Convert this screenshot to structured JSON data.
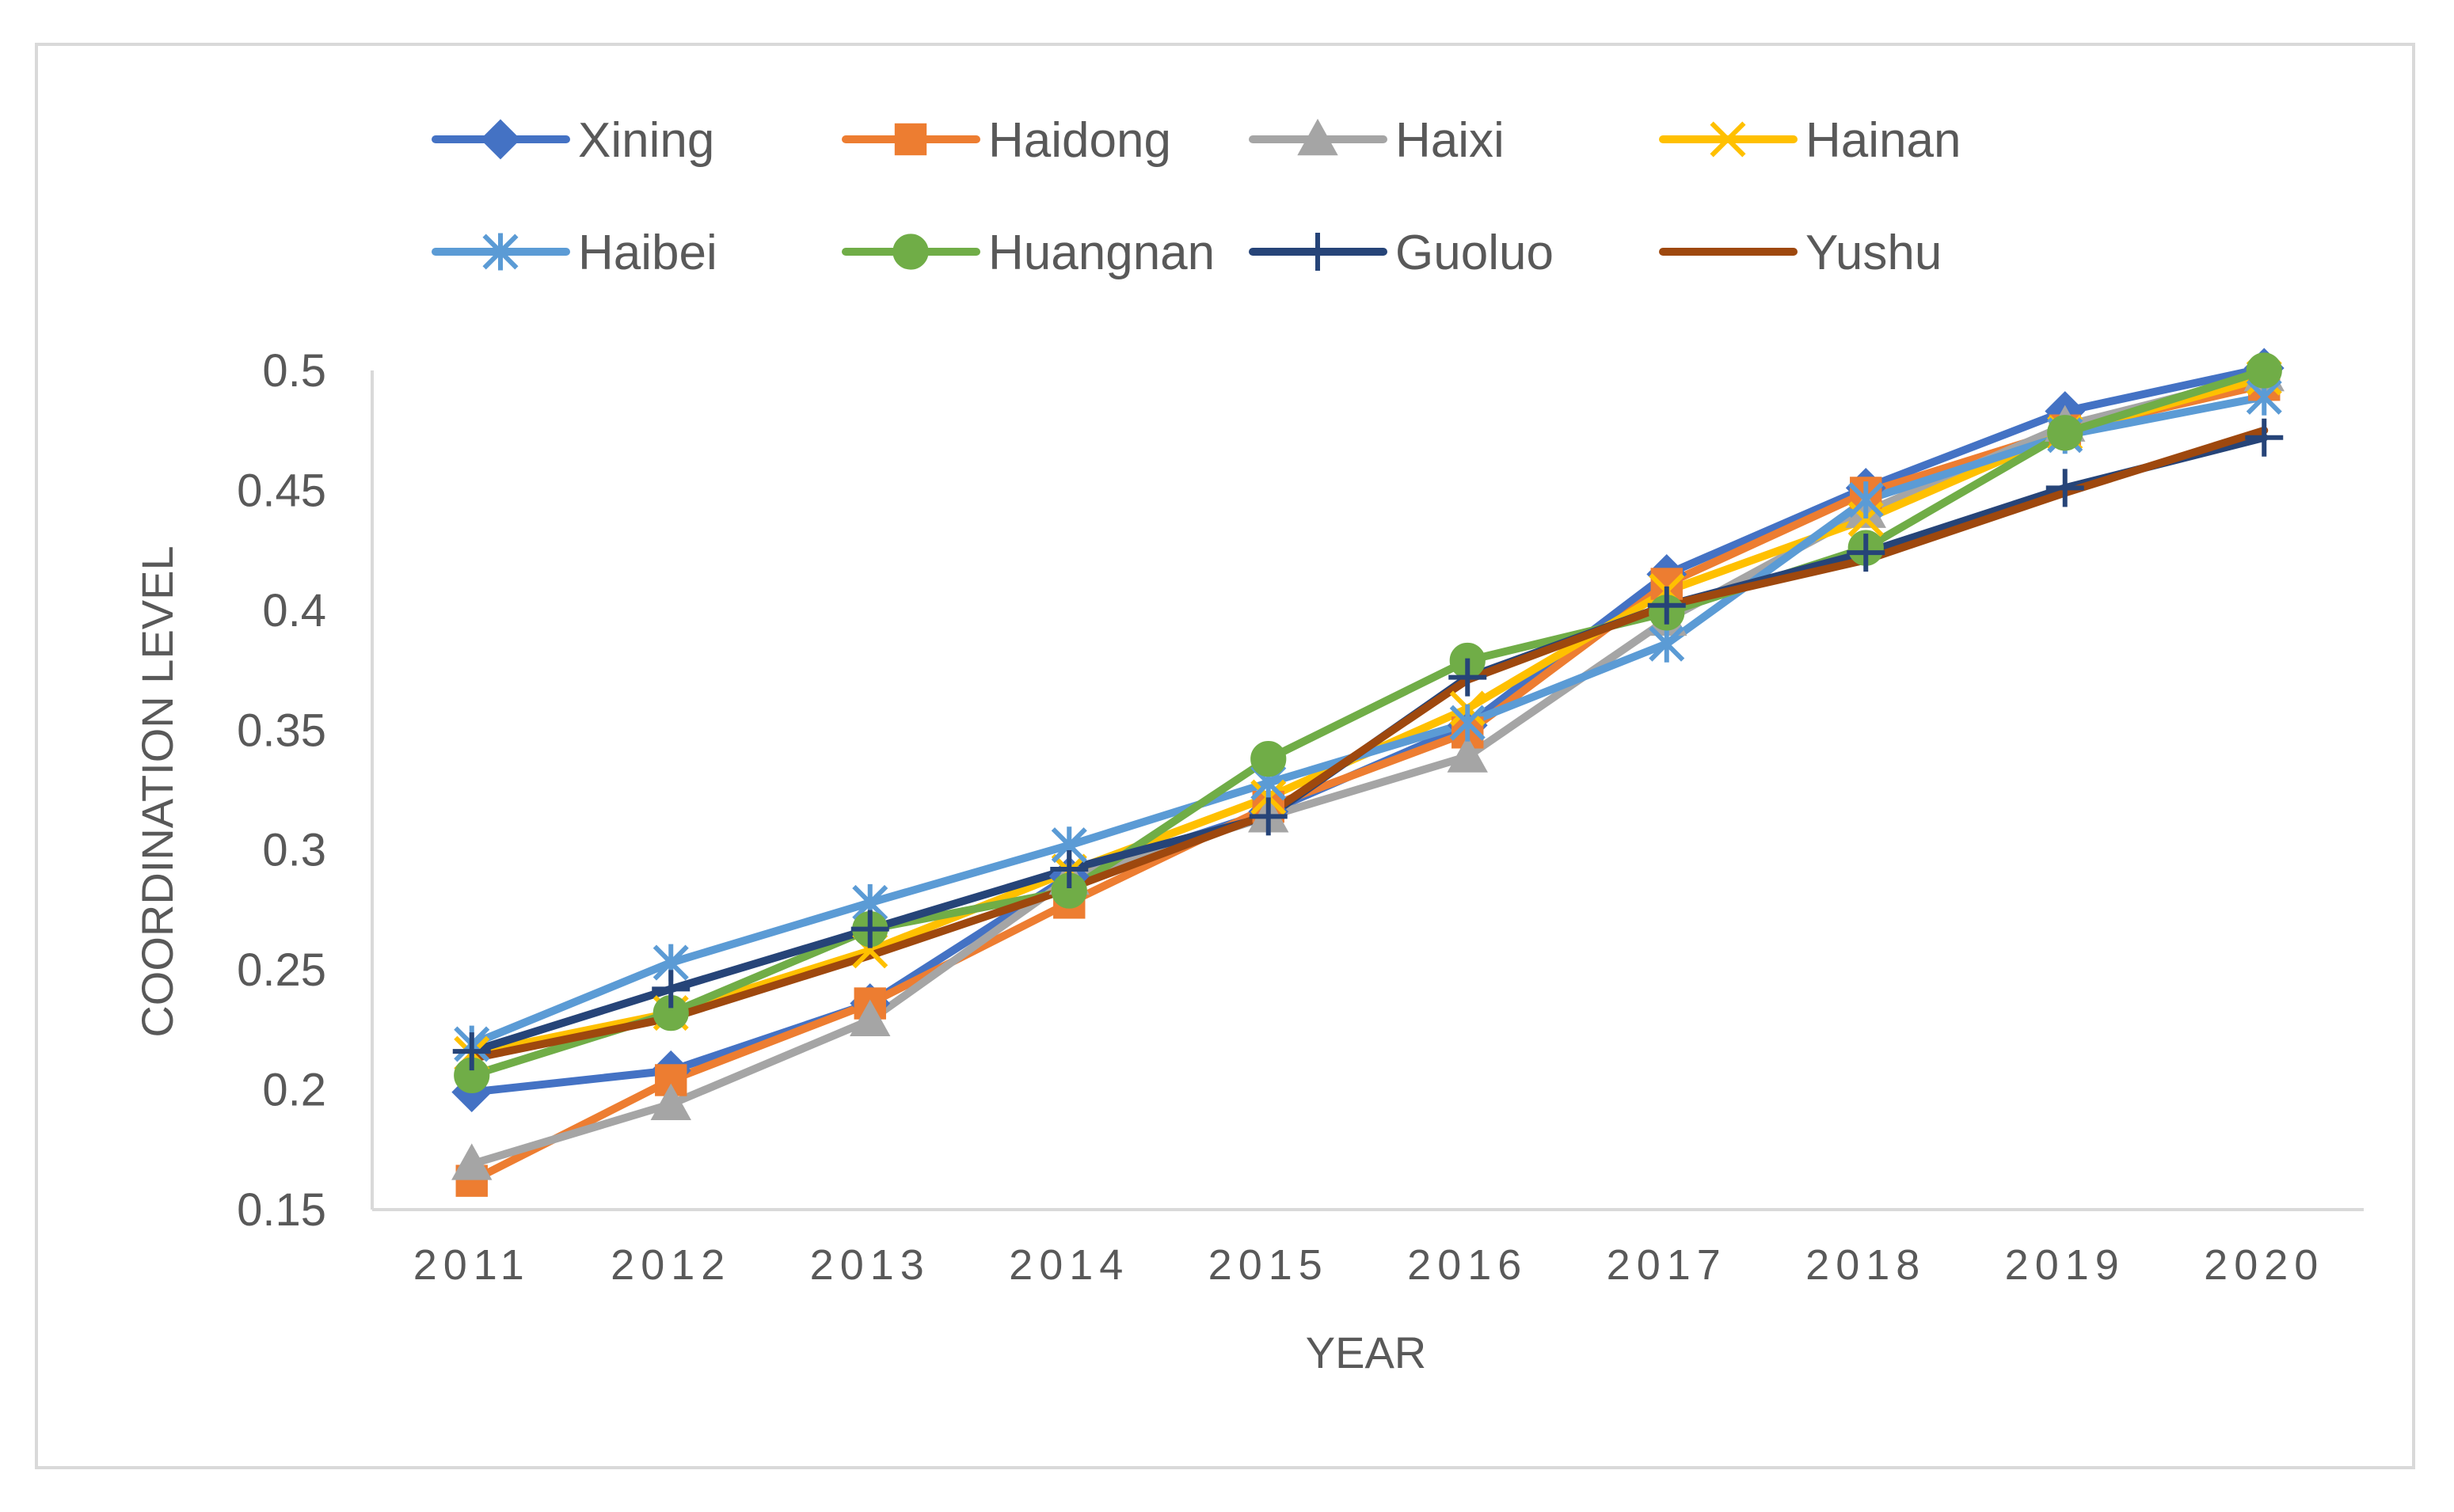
{
  "chart_data": {
    "type": "line",
    "title": "",
    "xlabel": "YEAR",
    "ylabel": "COORDINATION LEVEL",
    "categories": [
      "2011",
      "2012",
      "2013",
      "2014",
      "2015",
      "2016",
      "2017",
      "2018",
      "2019",
      "2020"
    ],
    "ylim": [
      0.15,
      0.5
    ],
    "yticks": [
      0.15,
      0.2,
      0.25,
      0.3,
      0.35,
      0.4,
      0.45,
      0.5
    ],
    "ytick_labels": [
      "0.15",
      "0.2",
      "0.25",
      "0.3",
      "0.35",
      "0.4",
      "0.45",
      "0.5"
    ],
    "grid": false,
    "legend_position": "top",
    "series": [
      {
        "name": "Xining",
        "color": "#4472c4",
        "marker": "diamond",
        "values": [
          0.199,
          0.208,
          0.236,
          0.289,
          0.316,
          0.352,
          0.415,
          0.451,
          0.483,
          0.501
        ]
      },
      {
        "name": "Haidong",
        "color": "#ed7d31",
        "marker": "square",
        "values": [
          0.162,
          0.204,
          0.236,
          0.278,
          0.318,
          0.349,
          0.411,
          0.449,
          0.475,
          0.494
        ]
      },
      {
        "name": "Haixi",
        "color": "#a5a5a5",
        "marker": "triangle",
        "values": [
          0.169,
          0.194,
          0.229,
          0.288,
          0.314,
          0.339,
          0.396,
          0.441,
          0.477,
          0.498
        ]
      },
      {
        "name": "Hainan",
        "color": "#ffc000",
        "marker": "x",
        "values": [
          0.215,
          0.232,
          0.258,
          0.291,
          0.322,
          0.359,
          0.408,
          0.438,
          0.474,
          0.497
        ]
      },
      {
        "name": "Haibei",
        "color": "#5b9bd5",
        "marker": "asterisk",
        "values": [
          0.219,
          0.253,
          0.278,
          0.302,
          0.328,
          0.353,
          0.386,
          0.446,
          0.473,
          0.489
        ]
      },
      {
        "name": "Huangnan",
        "color": "#70ad47",
        "marker": "circle",
        "values": [
          0.206,
          0.232,
          0.267,
          0.283,
          0.338,
          0.379,
          0.399,
          0.426,
          0.474,
          0.5
        ]
      },
      {
        "name": "Guoluo",
        "color": "#264478",
        "marker": "plus",
        "values": [
          0.216,
          0.242,
          0.267,
          0.292,
          0.314,
          0.372,
          0.402,
          0.424,
          0.451,
          0.472
        ]
      },
      {
        "name": "Yushu",
        "color": "#9e480e",
        "marker": "none",
        "values": [
          0.213,
          0.23,
          0.256,
          0.284,
          0.315,
          0.371,
          0.402,
          0.421,
          0.449,
          0.475
        ]
      }
    ]
  }
}
